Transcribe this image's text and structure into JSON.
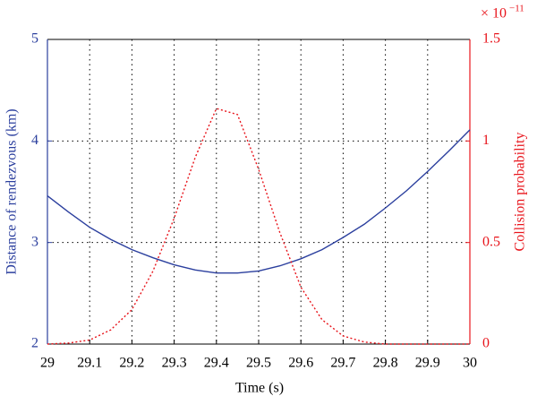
{
  "chart_data": {
    "type": "line",
    "x_label": "Time (s)",
    "y_label": "Distance of rendezvous (km)",
    "y2_label": "Collision probability",
    "y2_exponent": {
      "base": "× 10",
      "power": "−11"
    },
    "x": [
      29,
      29.05,
      29.1,
      29.15,
      29.2,
      29.25,
      29.3,
      29.35,
      29.4,
      29.45,
      29.5,
      29.55,
      29.6,
      29.65,
      29.7,
      29.75,
      29.8,
      29.85,
      29.9,
      29.95,
      30
    ],
    "series": [
      {
        "color": "#2b3f9e",
        "axis": "y",
        "style": "solid",
        "values": [
          3.46,
          3.3,
          3.15,
          3.03,
          2.93,
          2.85,
          2.78,
          2.73,
          2.7,
          2.7,
          2.72,
          2.77,
          2.84,
          2.93,
          3.05,
          3.18,
          3.34,
          3.51,
          3.7,
          3.9,
          4.11
        ]
      },
      {
        "color": "#e8141b",
        "axis": "y2",
        "style": "dotted",
        "values": [
          0,
          0.005,
          0.02,
          0.07,
          0.17,
          0.36,
          0.62,
          0.92,
          1.16,
          1.13,
          0.86,
          0.55,
          0.28,
          0.12,
          0.04,
          0.01,
          0,
          0,
          0,
          0,
          0
        ]
      }
    ],
    "xlim": [
      29,
      30
    ],
    "xticks": [
      29,
      29.1,
      29.2,
      29.3,
      29.4,
      29.5,
      29.6,
      29.7,
      29.8,
      29.9,
      30
    ],
    "ylim": [
      2,
      5
    ],
    "yticks": [
      2,
      3,
      4,
      5
    ],
    "y2lim": [
      0,
      1.5
    ],
    "y2ticks": [
      0,
      0.5,
      1,
      1.5
    ],
    "grid": true
  }
}
